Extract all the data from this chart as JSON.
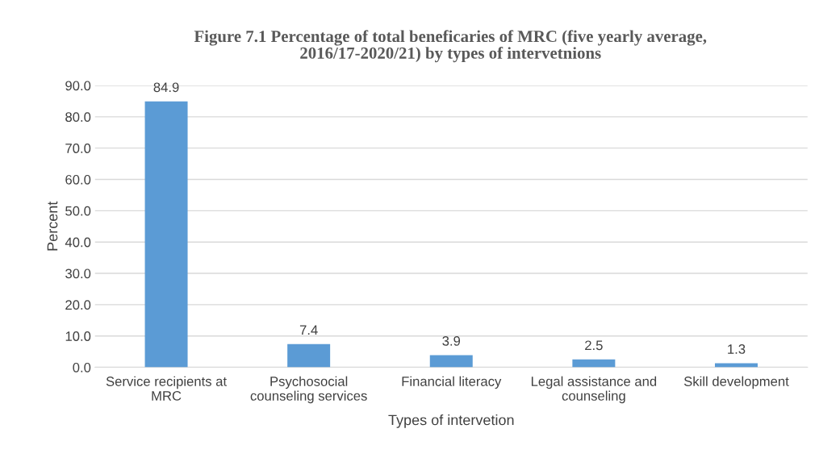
{
  "chart_data": {
    "type": "bar",
    "title": "Figure 7.1 Percentage of total beneficaries of MRC (five yearly average,\n2016/17-2020/21) by types of intervetnions",
    "xlabel": "Types of intervetion",
    "ylabel": "Percent",
    "categories": [
      "Service recipients at\nMRC",
      "Psychosocial\ncounseling services",
      "Financial literacy",
      "Legal assistance and\ncounseling",
      "Skill development"
    ],
    "values": [
      84.9,
      7.4,
      3.9,
      2.5,
      1.3
    ],
    "value_labels": [
      "84.9",
      "7.4",
      "3.9",
      "2.5",
      "1.3"
    ],
    "color": "#5b9bd5",
    "ylim": [
      0,
      90
    ],
    "yticks": [
      {
        "value": 0,
        "label": "0.0"
      },
      {
        "value": 10,
        "label": "10.0"
      },
      {
        "value": 20,
        "label": "20.0"
      },
      {
        "value": 30,
        "label": "30.0"
      },
      {
        "value": 40,
        "label": "40.0"
      },
      {
        "value": 50,
        "label": "50.0"
      },
      {
        "value": 60,
        "label": "60.0"
      },
      {
        "value": 70,
        "label": "70.0"
      },
      {
        "value": 80,
        "label": "80.0"
      },
      {
        "value": 90,
        "label": "90.0"
      }
    ],
    "grid": "y"
  }
}
